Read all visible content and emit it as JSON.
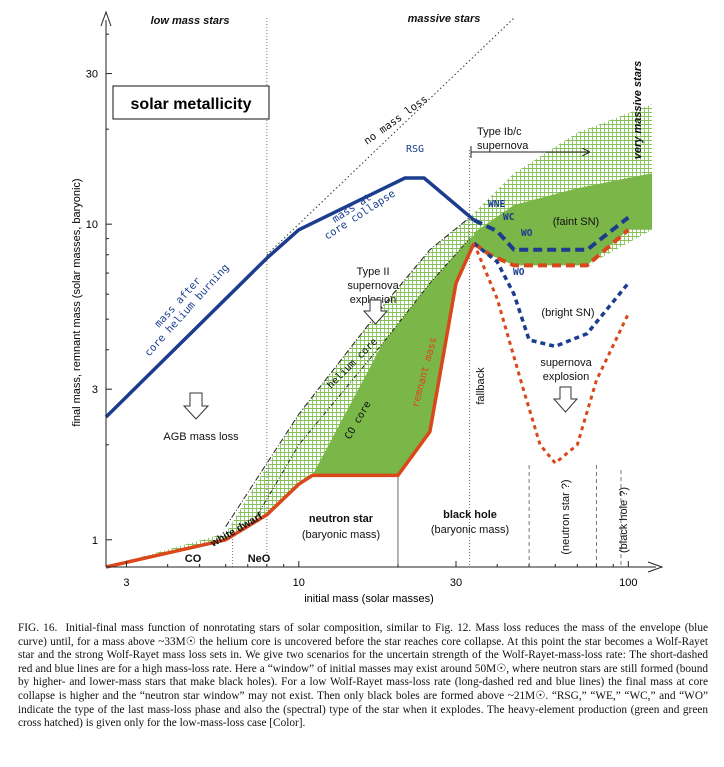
{
  "chart_data": {
    "type": "line",
    "xlabel": "initial mass (solar masses)",
    "ylabel": "final mass, remnant mass (solar masses, baryonic)",
    "x_scale": "log",
    "y_scale": "log",
    "xlim": [
      2.6,
      118
    ],
    "ylim": [
      0.82,
      45
    ],
    "x_ticks": [
      3,
      10,
      30,
      100
    ],
    "y_ticks": [
      1,
      3,
      10,
      30
    ],
    "series": [
      {
        "key": "envelope",
        "points": [
          [
            2.6,
            2.45
          ],
          [
            8,
            7.8
          ],
          [
            10,
            9.6
          ],
          [
            21,
            14.0
          ],
          [
            24,
            14.0
          ],
          [
            34,
            10.3
          ]
        ]
      },
      {
        "key": "no_mass_loss",
        "points": [
          [
            8,
            8
          ],
          [
            45,
            45
          ]
        ]
      },
      {
        "key": "helium_core",
        "points": [
          [
            6,
            1.1
          ],
          [
            10,
            2.5
          ],
          [
            18,
            5.5
          ],
          [
            25,
            8.3
          ],
          [
            33,
            10.5
          ]
        ]
      },
      {
        "key": "co_core",
        "points": [
          [
            7.5,
            1.2
          ],
          [
            10,
            2.0
          ],
          [
            18,
            4.2
          ],
          [
            25,
            6.5
          ],
          [
            33,
            9.0
          ]
        ]
      },
      {
        "key": "remnant_common",
        "points": [
          [
            2.6,
            0.82
          ],
          [
            6,
            1.0
          ],
          [
            8,
            1.2
          ],
          [
            10,
            1.5
          ],
          [
            11,
            1.6
          ],
          [
            20,
            1.6
          ],
          [
            25,
            2.2
          ],
          [
            30,
            6.5
          ],
          [
            34,
            8.7
          ]
        ]
      },
      {
        "key": "high_ml_wr",
        "points": [
          [
            34,
            8.7
          ],
          [
            38,
            8.0
          ],
          [
            45,
            7.4
          ],
          [
            60,
            7.4
          ],
          [
            75,
            7.4
          ],
          [
            100,
            9.6
          ]
        ]
      },
      {
        "key": "low_ml_wr",
        "points": [
          [
            34,
            8.7
          ],
          [
            40,
            7.6
          ],
          [
            45,
            6.0
          ],
          [
            50,
            4.3
          ],
          [
            60,
            4.1
          ],
          [
            75,
            4.5
          ],
          [
            100,
            6.5
          ]
        ]
      },
      {
        "key": "high_ml_sn",
        "points": [
          [
            34,
            10.3
          ],
          [
            40,
            9.5
          ],
          [
            45,
            8.3
          ],
          [
            60,
            8.3
          ],
          [
            75,
            8.3
          ],
          [
            100,
            10.5
          ]
        ]
      },
      {
        "key": "low_ml_sn",
        "points": [
          [
            34,
            8.7
          ],
          [
            40,
            5.8
          ],
          [
            48,
            3.0
          ],
          [
            54,
            2.0
          ],
          [
            60,
            1.75
          ],
          [
            70,
            2.0
          ],
          [
            80,
            3.2
          ],
          [
            100,
            5.2
          ]
        ]
      }
    ],
    "vertical_lines": [
      {
        "key": "massive_divider",
        "x": 8
      },
      {
        "key": "fallback",
        "x": 33
      },
      {
        "key": "neutron_star_window_left",
        "x": 50
      },
      {
        "key": "neutron_star_window_right",
        "x": 80
      },
      {
        "key": "black_hole_right",
        "x": 95
      },
      {
        "key": "neo_divider",
        "x": 6.3
      },
      {
        "key": "ns_bh_divider",
        "x": 20
      }
    ],
    "region_labels": [
      {
        "key": "low_mass_stars",
        "text": "low mass stars"
      },
      {
        "key": "massive_stars",
        "text": "massive stars"
      },
      {
        "key": "very_massive_stars",
        "text": "very massive stars"
      },
      {
        "key": "no_mass_loss",
        "text": "no mass loss"
      },
      {
        "key": "rsg",
        "text": "RSG"
      },
      {
        "key": "mass_at_core_collapse_1",
        "text": "mass at"
      },
      {
        "key": "mass_at_core_collapse_2",
        "text": "core collapse"
      },
      {
        "key": "mass_after_1",
        "text": "mass after"
      },
      {
        "key": "mass_after_2",
        "text": "core helium burning"
      },
      {
        "key": "type_ibc_1",
        "text": "Type Ib/c"
      },
      {
        "key": "type_ibc_2",
        "text": "supernova"
      },
      {
        "key": "wne",
        "text": "WNE"
      },
      {
        "key": "wc",
        "text": "WC"
      },
      {
        "key": "wo_upper",
        "text": "WO"
      },
      {
        "key": "wo_lower",
        "text": "WO"
      },
      {
        "key": "faint_sn",
        "text": "(faint SN)"
      },
      {
        "key": "bright_sn",
        "text": "(bright SN)"
      },
      {
        "key": "supernova_explosion_1",
        "text": "supernova"
      },
      {
        "key": "supernova_explosion_2",
        "text": "explosion"
      },
      {
        "key": "type_ii_1",
        "text": "Type II"
      },
      {
        "key": "type_ii_2",
        "text": "supernova"
      },
      {
        "key": "type_ii_3",
        "text": "explosion"
      },
      {
        "key": "helium_core",
        "text": "helium core"
      },
      {
        "key": "co_core",
        "text": "CO core"
      },
      {
        "key": "remnant_mass",
        "text": "remnant mass"
      },
      {
        "key": "fallback",
        "text": "fallback"
      },
      {
        "key": "agb_mass_loss",
        "text": "AGB mass loss"
      },
      {
        "key": "white_dwarf",
        "text": "white dwarf"
      },
      {
        "key": "co",
        "text": "CO"
      },
      {
        "key": "neo",
        "text": "NeO"
      },
      {
        "key": "neutron_star_1",
        "text": "neutron star"
      },
      {
        "key": "neutron_star_2",
        "text": "(baryonic mass)"
      },
      {
        "key": "black_hole_1",
        "text": "black hole"
      },
      {
        "key": "black_hole_2",
        "text": "(baryonic mass)"
      },
      {
        "key": "neutron_star_q",
        "text": "(neutron star ?)"
      },
      {
        "key": "black_hole_q",
        "text": "(black hole ?)"
      }
    ],
    "panel_box_label": "solar metallicity",
    "colors": {
      "blue": "#1c3d8f",
      "red": "#d9471a",
      "green": "#7ab648",
      "hatch": "#86c25a",
      "axis": "#222222"
    }
  },
  "caption": {
    "label": "FIG. 16.",
    "text": "Initial-final mass function of nonrotating stars of solar composition, similar to Fig. 12. Mass loss reduces the mass of the envelope (blue curve) until, for a mass above ~33M☉ the helium core is uncovered before the star reaches core collapse. At this point the star becomes a Wolf-Rayet star and the strong Wolf-Rayet mass loss sets in. We give two scenarios for the uncertain strength of the Wolf-Rayet-mass-loss rate: The short-dashed red and blue lines are for a high mass-loss rate. Here a “window” of initial masses may exist around 50M☉, where neutron stars are still formed (bound by higher- and lower-mass stars that make black holes). For a low Wolf-Rayet mass-loss rate (long-dashed red and blue lines) the final mass at core collapse is higher and the “neutron star window” may not exist. Then only black boles are formed above ~21M☉. “RSG,” “WE,” “WC,” and “WO” indicate the type of the last mass-loss phase and also the (spectral) type of the star when it explodes. The heavy-element production (green and green cross hatched) is given only for the low-mass-loss case [Color]."
  }
}
